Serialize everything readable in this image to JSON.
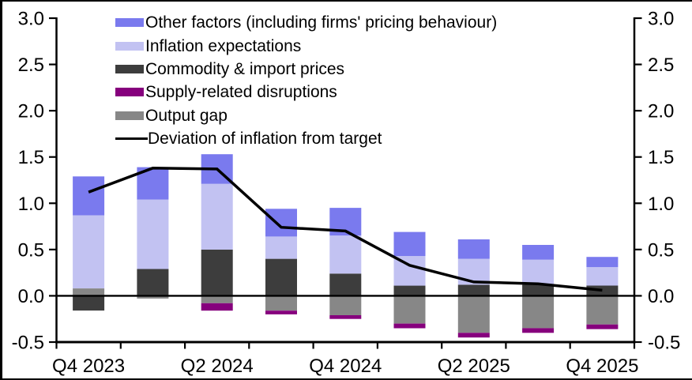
{
  "chart_data": {
    "type": "bar",
    "subtype": "stacked-bars-with-line-overlay",
    "title": "",
    "categories": [
      "Q4 2023",
      "Q1 2024",
      "Q2 2024",
      "Q3 2024",
      "Q4 2024",
      "Q1 2025",
      "Q2 2025",
      "Q3 2025",
      "Q4 2025"
    ],
    "x_tick_labels": [
      "Q4 2023",
      "Q2 2024",
      "Q4 2024",
      "Q2 2025",
      "Q4 2025"
    ],
    "x_tick_label_indices": [
      0,
      2,
      4,
      6,
      8
    ],
    "y_ticks": [
      3.0,
      2.5,
      2.0,
      1.5,
      1.0,
      0.5,
      0.0,
      -0.5
    ],
    "y_tick_labels": [
      "3.0",
      "2.5",
      "2.0",
      "1.5",
      "1.0",
      "0.5",
      "0.0",
      "-0.5"
    ],
    "ylim": [
      -0.5,
      3.0
    ],
    "grid": false,
    "legend_position": "top-left-inside",
    "series": [
      {
        "key": "output-gap",
        "name": "Output gap",
        "color": "#878787",
        "values": [
          0.08,
          -0.03,
          -0.08,
          -0.16,
          -0.21,
          -0.3,
          -0.4,
          -0.35,
          -0.31
        ]
      },
      {
        "key": "supply-related-disruptions",
        "name": "Supply-related disruptions",
        "color": "#86007d",
        "values": [
          0.0,
          0.0,
          -0.08,
          -0.04,
          -0.04,
          -0.05,
          -0.05,
          -0.05,
          -0.05
        ]
      },
      {
        "key": "commodity-import-prices",
        "name": "Commodity & import prices",
        "color": "#3d3d3d",
        "values": [
          -0.16,
          0.29,
          0.5,
          0.4,
          0.24,
          0.11,
          0.12,
          0.12,
          0.11
        ]
      },
      {
        "key": "inflation-expectations",
        "name": "Inflation expectations",
        "color": "#c2c2f2",
        "values": [
          0.79,
          0.75,
          0.71,
          0.24,
          0.41,
          0.32,
          0.28,
          0.27,
          0.2
        ]
      },
      {
        "key": "other-factors",
        "name": "Other factors (including firms' pricing behaviour)",
        "color": "#7a7aee",
        "values": [
          0.42,
          0.35,
          0.32,
          0.3,
          0.3,
          0.26,
          0.21,
          0.16,
          0.11
        ]
      }
    ],
    "line_series": {
      "key": "deviation-of-inflation-from-target",
      "name": "Deviation of inflation from target",
      "color": "#000000",
      "values": [
        1.12,
        1.38,
        1.37,
        0.74,
        0.7,
        0.33,
        0.15,
        0.13,
        0.06
      ]
    }
  },
  "legend": {
    "items": [
      {
        "key": "other-factors",
        "label": "Other factors (including firms' pricing behaviour)",
        "swatch": "#7a7aee",
        "type": "box"
      },
      {
        "key": "inflation-expectations",
        "label": "Inflation expectations",
        "swatch": "#c2c2f2",
        "type": "box"
      },
      {
        "key": "commodity-import-prices",
        "label": "Commodity & import prices",
        "swatch": "#3d3d3d",
        "type": "box"
      },
      {
        "key": "supply-related-disruptions",
        "label": "Supply-related disruptions",
        "swatch": "#86007d",
        "type": "box"
      },
      {
        "key": "output-gap",
        "label": "Output gap",
        "swatch": "#878787",
        "type": "box"
      },
      {
        "key": "deviation-line",
        "label": "Deviation of inflation from target",
        "swatch": "#000000",
        "type": "line"
      }
    ]
  },
  "colors": {
    "background": "#ffffff",
    "axis": "#000000"
  }
}
